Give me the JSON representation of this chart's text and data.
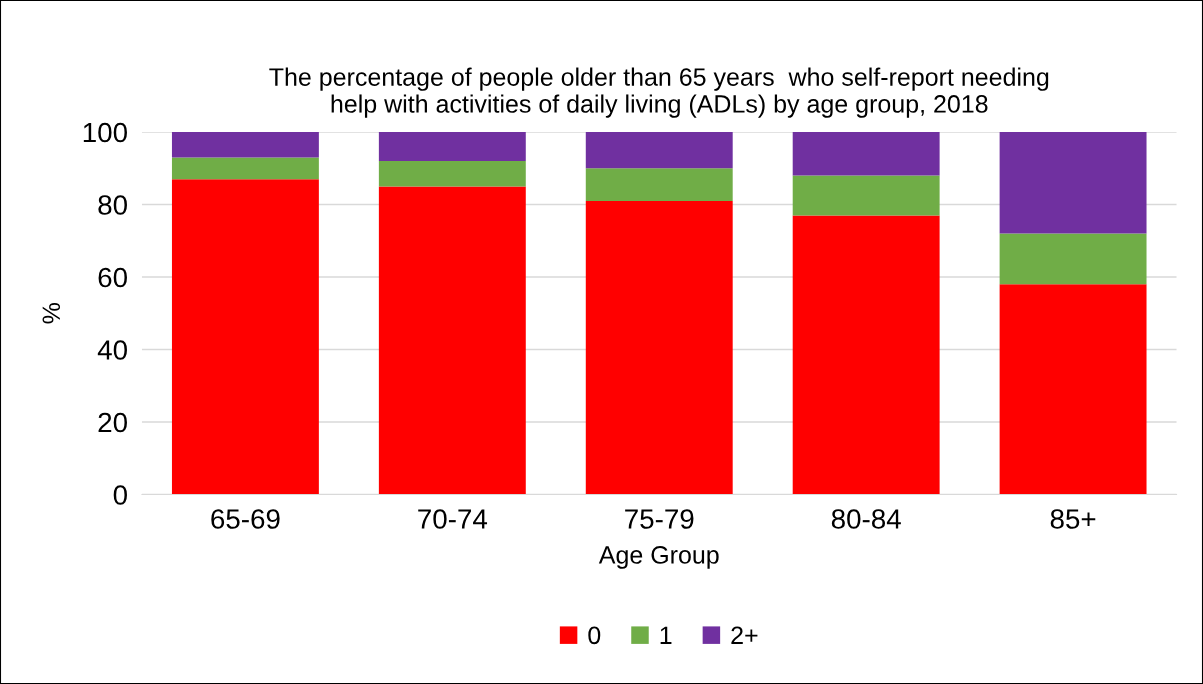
{
  "chart_data": {
    "type": "bar",
    "stacked": true,
    "title": "The percentage of people older than 65 years  who self-report needing\nhelp with activities of daily living (ADLs) by age group, 2018",
    "xlabel": "Age Group",
    "ylabel": "%",
    "categories": [
      "65-69",
      "70-74",
      "75-79",
      "80-84",
      "85+"
    ],
    "series": [
      {
        "name": "0",
        "color": "#ff0000",
        "values": [
          87,
          85,
          81,
          77,
          58
        ]
      },
      {
        "name": "1",
        "color": "#70ad47",
        "values": [
          6,
          7,
          9,
          11,
          14
        ]
      },
      {
        "name": "2+",
        "color": "#7030a0",
        "values": [
          7,
          8,
          10,
          12,
          28
        ]
      }
    ],
    "ylim": [
      0,
      100
    ],
    "yticks": [
      0,
      20,
      40,
      60,
      80,
      100
    ],
    "grid": "y",
    "legend": "bottom"
  }
}
